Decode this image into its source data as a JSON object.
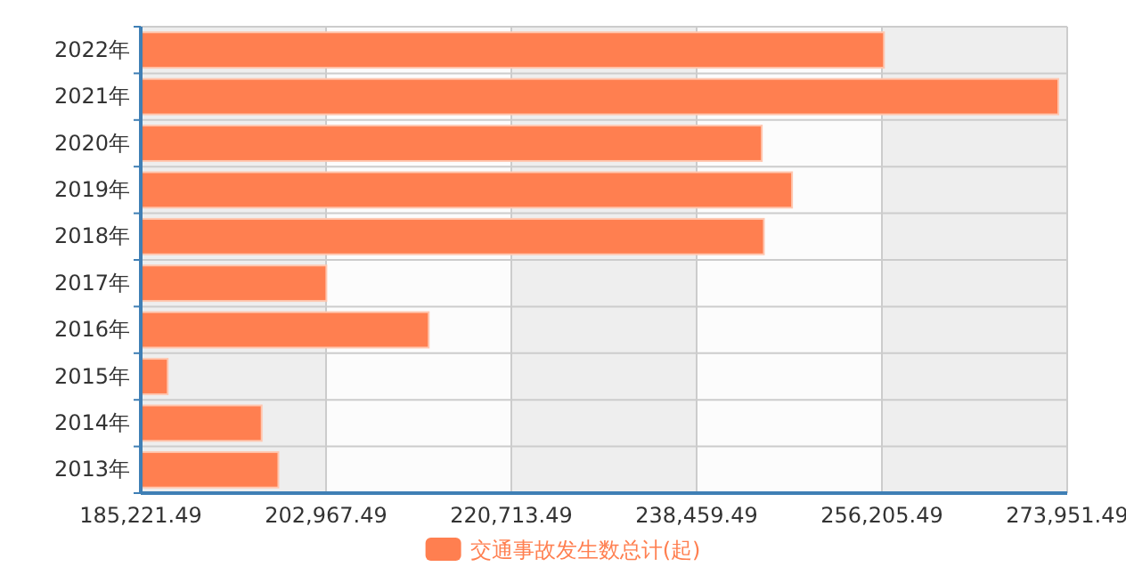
{
  "chart_data": {
    "type": "bar",
    "orientation": "horizontal",
    "categories": [
      "2022年",
      "2021年",
      "2020年",
      "2019年",
      "2018年",
      "2017年",
      "2016年",
      "2015年",
      "2014年",
      "2013年"
    ],
    "series": [
      {
        "name": "交通事故发生数总计(起)",
        "color": "#ff7f50",
        "values": [
          256400,
          273100,
          244700,
          247600,
          244900,
          203000,
          212800,
          187800,
          196800,
          198400
        ]
      }
    ],
    "xlim": [
      185221.49,
      273951.49
    ],
    "xticks": [
      {
        "value": 185221.49,
        "label": "185,221.49"
      },
      {
        "value": 202967.49,
        "label": "202,967.49"
      },
      {
        "value": 220713.49,
        "label": "220,713.49"
      },
      {
        "value": 238459.49,
        "label": "238,459.49"
      },
      {
        "value": 256205.49,
        "label": "256,205.49"
      },
      {
        "value": 273951.49,
        "label": "273,951.49"
      }
    ],
    "grid": true,
    "legend": "bottom"
  }
}
